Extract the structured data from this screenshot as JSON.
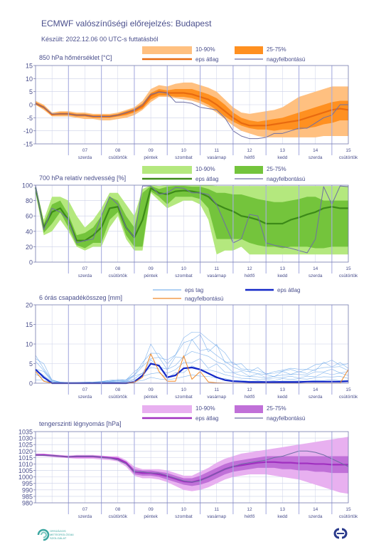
{
  "header": {
    "title": "ECMWF valószínűségi előrejelzés: Budapest",
    "subtitle": "Készült: 2022.12.06 00 UTC-s futtatásból"
  },
  "colors": {
    "axis": "#7a7fb0",
    "grid": "#ccd0e8",
    "day_line": "#a9aee0",
    "text": "#4a4f8c",
    "hires": "#6e6fa4"
  },
  "logos": {
    "omsz_text": [
      "ORSZÁGOS",
      "METEOROLÓGIAI",
      "SZOLGÁLAT"
    ],
    "omsz_color": "#3aa6a0",
    "ecmwf_color": "#2a3a8c"
  },
  "x_axis": {
    "days": [
      {
        "num": "07",
        "name": "szerda"
      },
      {
        "num": "08",
        "name": "csütörtök"
      },
      {
        "num": "09",
        "name": "péntek"
      },
      {
        "num": "10",
        "name": "szombat"
      },
      {
        "num": "11",
        "name": "vasárnap"
      },
      {
        "num": "12",
        "name": "hétfő"
      },
      {
        "num": "13",
        "name": "kedd"
      },
      {
        "num": "14",
        "name": "szerda"
      },
      {
        "num": "15",
        "name": "csütörtök"
      }
    ],
    "x_range_hours": [
      0,
      228
    ],
    "step_hours": 6
  },
  "chart_data": [
    {
      "type": "area",
      "id": "t850",
      "title": "850 hPa hőmérséklet [°C]",
      "ylim": [
        -15,
        15
      ],
      "yticks": [
        -15,
        -10,
        -5,
        0,
        5,
        10,
        15
      ],
      "colors": {
        "outer": "#ffc080",
        "inner": "#ff9020",
        "mean": "#e86a10"
      },
      "legend": {
        "band_outer": "10-90%",
        "band_inner": "25-75%",
        "mean": "eps átlag",
        "hires": "nagyfelbontású"
      },
      "x_hours": [
        0,
        6,
        12,
        18,
        24,
        30,
        36,
        42,
        48,
        54,
        60,
        66,
        72,
        78,
        84,
        90,
        96,
        102,
        108,
        114,
        120,
        126,
        132,
        138,
        144,
        150,
        156,
        162,
        168,
        174,
        180,
        186,
        192,
        198,
        204,
        210,
        216,
        222,
        228
      ],
      "p10": [
        0,
        -2,
        -4.5,
        -4.5,
        -4.5,
        -5,
        -5.5,
        -5.5,
        -6,
        -6,
        -5.5,
        -5,
        -4,
        -2,
        1,
        3,
        3,
        2.5,
        2,
        1.5,
        0.5,
        -1,
        -3,
        -5.5,
        -8,
        -10,
        -11,
        -12,
        -12.5,
        -12.5,
        -12.5,
        -12.5,
        -12.5,
        -12.5,
        -12.5,
        -12,
        -12,
        -12,
        -12
      ],
      "p25": [
        0,
        -1.5,
        -4,
        -4,
        -4,
        -4.5,
        -4.5,
        -5,
        -5,
        -5,
        -4.5,
        -4,
        -3,
        -1.5,
        2,
        3.5,
        3.5,
        3,
        3,
        2.5,
        1.5,
        0,
        -2,
        -4.5,
        -6.5,
        -8,
        -9,
        -9.5,
        -9.5,
        -10,
        -9.5,
        -9.5,
        -9.5,
        -9,
        -8.5,
        -7.5,
        -7,
        -6,
        -6
      ],
      "p75": [
        1,
        -0.5,
        -3.5,
        -3,
        -3,
        -3.5,
        -3.5,
        -4,
        -4,
        -4,
        -3.5,
        -2.5,
        -1.5,
        0.5,
        4.5,
        6,
        5.5,
        6,
        6,
        6,
        5,
        4,
        2.5,
        0,
        -3,
        -5,
        -6,
        -6.5,
        -6,
        -5.5,
        -5,
        -4,
        -3,
        -2,
        -1,
        0,
        1,
        1.5,
        1.5
      ],
      "p90": [
        1.5,
        0,
        -3,
        -2.5,
        -2.5,
        -3,
        -3,
        -3.5,
        -3.5,
        -3.5,
        -3,
        -2,
        -1,
        1.5,
        6,
        7.5,
        7,
        8,
        8.5,
        8.5,
        7.5,
        6.5,
        5,
        2,
        -1,
        -3,
        -3.5,
        -3,
        -2.5,
        -2,
        -1,
        1,
        3,
        4,
        5,
        6,
        7,
        7,
        7
      ],
      "mean": [
        0.5,
        -1,
        -3.8,
        -3.5,
        -3.5,
        -4,
        -4,
        -4.5,
        -4.5,
        -4.5,
        -4,
        -3.2,
        -2.2,
        -0.5,
        3.5,
        5,
        4.5,
        4.5,
        4.5,
        4,
        3,
        2,
        0,
        -2.5,
        -5,
        -7,
        -8,
        -8,
        -8,
        -7.5,
        -7,
        -6.5,
        -6,
        -5,
        -4,
        -3,
        -2,
        -1.5,
        -2
      ],
      "hires": [
        0.5,
        -1,
        -3.5,
        -3.5,
        -3.5,
        -4,
        -4,
        -4.5,
        -4.5,
        -4.5,
        -4,
        -3,
        -2,
        0,
        4,
        4.8,
        4.5,
        1,
        1,
        0.5,
        -1,
        -1.5,
        -2,
        -5,
        -10,
        -12,
        -13,
        -13,
        -12.5,
        -11,
        -11,
        -10,
        -9,
        -9,
        -7,
        -5,
        -4,
        0,
        0
      ]
    },
    {
      "type": "area",
      "id": "rh700",
      "title": "700 hPa relatív nedvesség [%]",
      "ylim": [
        0,
        100
      ],
      "yticks": [
        0,
        20,
        40,
        60,
        80,
        100
      ],
      "colors": {
        "outer": "#b4e87e",
        "inner": "#74c43c",
        "mean": "#3c8a18"
      },
      "legend": {
        "band_outer": "10-90%",
        "band_inner": "25-75%",
        "mean": "eps átlag",
        "hires": "nagyfelbontású"
      },
      "x_hours": [
        0,
        6,
        12,
        18,
        24,
        30,
        36,
        42,
        48,
        54,
        60,
        66,
        72,
        78,
        84,
        90,
        96,
        102,
        108,
        114,
        120,
        126,
        132,
        138,
        144,
        150,
        156,
        162,
        168,
        174,
        180,
        186,
        192,
        198,
        204,
        210,
        216,
        222,
        228
      ],
      "p10": [
        90,
        35,
        40,
        55,
        40,
        20,
        15,
        20,
        20,
        45,
        60,
        30,
        15,
        15,
        90,
        80,
        70,
        75,
        80,
        80,
        75,
        55,
        10,
        15,
        15,
        20,
        10,
        10,
        10,
        10,
        10,
        10,
        10,
        10,
        10,
        10,
        10,
        10,
        10
      ],
      "p25": [
        95,
        38,
        50,
        65,
        45,
        22,
        18,
        25,
        25,
        55,
        65,
        35,
        20,
        20,
        92,
        85,
        75,
        85,
        85,
        85,
        82,
        70,
        30,
        30,
        30,
        30,
        25,
        22,
        20,
        20,
        18,
        20,
        20,
        20,
        18,
        18,
        20,
        20,
        20
      ],
      "p75": [
        99,
        50,
        75,
        80,
        62,
        35,
        38,
        45,
        60,
        85,
        80,
        60,
        45,
        90,
        99,
        95,
        98,
        99,
        99,
        98,
        98,
        95,
        90,
        90,
        88,
        88,
        85,
        82,
        80,
        78,
        78,
        80,
        82,
        85,
        85,
        80,
        80,
        80,
        80
      ],
      "p90": [
        100,
        55,
        85,
        85,
        80,
        60,
        45,
        55,
        70,
        90,
        90,
        75,
        60,
        95,
        100,
        99,
        100,
        100,
        100,
        100,
        100,
        100,
        99,
        99,
        99,
        99,
        99,
        99,
        99,
        99,
        99,
        99,
        99,
        99,
        99,
        99,
        99,
        99,
        99
      ],
      "mean": [
        97,
        45,
        65,
        70,
        55,
        28,
        28,
        35,
        45,
        70,
        72,
        45,
        32,
        55,
        96,
        90,
        88,
        92,
        93,
        92,
        90,
        85,
        75,
        70,
        66,
        60,
        58,
        55,
        50,
        50,
        50,
        55,
        58,
        62,
        65,
        70,
        72,
        70,
        70
      ],
      "hires": [
        100,
        42,
        70,
        65,
        55,
        25,
        28,
        30,
        60,
        85,
        75,
        45,
        32,
        99,
        99,
        88,
        90,
        97,
        96,
        90,
        90,
        88,
        75,
        50,
        25,
        30,
        62,
        60,
        25,
        22,
        20,
        18,
        15,
        12,
        30,
        98,
        75,
        99,
        98
      ]
    },
    {
      "type": "line",
      "id": "precip",
      "title": "6 órás csapadékösszeg [mm]",
      "ylim": [
        0,
        20
      ],
      "yticks": [
        0,
        5,
        10,
        15,
        20
      ],
      "colors": {
        "members": "#5fa0e8",
        "mean": "#1428c8",
        "hires": "#f08a2a"
      },
      "legend": {
        "members": "eps tag",
        "mean": "eps átlag",
        "hires": "nagyfelbontású"
      },
      "x_hours": [
        0,
        6,
        12,
        18,
        24,
        30,
        36,
        42,
        48,
        54,
        60,
        66,
        72,
        78,
        84,
        90,
        96,
        102,
        108,
        114,
        120,
        126,
        132,
        138,
        144,
        150,
        156,
        162,
        168,
        174,
        180,
        186,
        192,
        198,
        204,
        210,
        216,
        222,
        228
      ],
      "members_envelope_max": [
        8,
        5,
        1,
        0.3,
        0.2,
        0.2,
        0.3,
        0.3,
        0.5,
        0.8,
        1,
        1,
        3,
        6,
        10,
        9,
        6,
        9,
        12,
        15,
        14,
        12,
        11,
        8,
        6,
        5,
        4,
        4,
        3,
        3,
        4,
        4,
        4,
        4,
        5,
        6,
        6,
        6,
        5
      ],
      "mean": [
        3.5,
        1.5,
        0,
        0,
        0,
        0,
        0,
        0,
        0,
        0,
        0,
        0,
        0.3,
        2,
        5,
        4.5,
        1.5,
        2,
        3.8,
        4,
        3.5,
        2.5,
        1.5,
        0.8,
        0.5,
        0.4,
        0.3,
        0.3,
        0.3,
        0.3,
        0.3,
        0.3,
        0.3,
        0.4,
        0.4,
        0.4,
        0.4,
        0.4,
        0.5
      ],
      "hires": [
        3,
        0.5,
        0,
        0,
        0,
        0,
        0,
        0,
        0,
        0,
        0,
        0,
        0.2,
        1.5,
        7.5,
        3,
        0.5,
        0.5,
        7,
        1,
        3,
        0.3,
        0.1,
        0,
        0,
        0,
        0,
        0,
        0,
        0,
        0,
        0,
        0,
        0,
        0,
        0,
        0,
        0,
        3.5
      ]
    },
    {
      "type": "area",
      "id": "mslp",
      "title": "tengerszinti légnyomás [hPa]",
      "ylim": [
        980,
        1035
      ],
      "yticks": [
        980,
        985,
        990,
        995,
        1000,
        1005,
        1010,
        1015,
        1020,
        1025,
        1030,
        1035
      ],
      "colors": {
        "outer": "#e8b0f0",
        "inner": "#c070d8",
        "mean": "#a030c0"
      },
      "legend": {
        "band_outer": "10-90%",
        "band_inner": "25-75%",
        "mean": "eps átlag",
        "hires": "nagyfelbontású"
      },
      "x_hours": [
        0,
        6,
        12,
        18,
        24,
        30,
        36,
        42,
        48,
        54,
        60,
        66,
        72,
        78,
        84,
        90,
        96,
        102,
        108,
        114,
        120,
        126,
        132,
        138,
        144,
        150,
        156,
        162,
        168,
        174,
        180,
        186,
        192,
        198,
        204,
        210,
        216,
        222,
        228
      ],
      "p10": [
        1016,
        1016,
        1015.5,
        1015,
        1014.5,
        1014,
        1014,
        1014,
        1013.5,
        1013,
        1012,
        1008,
        1001,
        999,
        999,
        998,
        996,
        993,
        990,
        989,
        990,
        992,
        995,
        998,
        1000,
        1001,
        1002,
        1002,
        1002,
        1001,
        1000,
        999,
        998,
        996,
        994,
        992,
        990,
        988,
        987
      ],
      "p25": [
        1016.5,
        1016.5,
        1016,
        1015.5,
        1015,
        1015,
        1015,
        1015,
        1014.5,
        1014,
        1013,
        1010,
        1002,
        1001,
        1001,
        1000,
        998,
        996,
        994,
        993,
        994,
        996,
        999,
        1002,
        1004,
        1005,
        1006,
        1007,
        1007,
        1007,
        1006,
        1006,
        1005,
        1005,
        1004,
        1004,
        1003,
        1003,
        1003
      ],
      "p75": [
        1017.5,
        1017.5,
        1017,
        1016.5,
        1016,
        1016.5,
        1016.5,
        1016.5,
        1016,
        1015.5,
        1015,
        1012,
        1006,
        1005,
        1005,
        1004,
        1003,
        1001,
        999,
        999,
        1001,
        1004,
        1007,
        1010,
        1012,
        1013,
        1014,
        1015,
        1016,
        1016,
        1016,
        1016,
        1016,
        1016,
        1016,
        1016,
        1016,
        1016,
        1016
      ],
      "p90": [
        1018,
        1018,
        1017.5,
        1017,
        1016.5,
        1017,
        1017,
        1017,
        1016.5,
        1016,
        1016,
        1013,
        1008,
        1006,
        1006,
        1006,
        1005,
        1003,
        1001,
        1001,
        1004,
        1007,
        1011,
        1014,
        1016,
        1018,
        1019,
        1020,
        1021,
        1022,
        1023,
        1024,
        1025,
        1026,
        1027,
        1028,
        1029,
        1030,
        1031
      ],
      "mean": [
        1017,
        1017,
        1016.5,
        1016,
        1015.5,
        1015.8,
        1015.8,
        1015.8,
        1015.3,
        1014.8,
        1014,
        1011,
        1004,
        1003,
        1003,
        1002,
        1000.5,
        998.5,
        996.5,
        996,
        997.5,
        1000,
        1003,
        1006,
        1008,
        1009,
        1010,
        1011,
        1011.5,
        1011.5,
        1011,
        1011,
        1010.5,
        1010.5,
        1010,
        1010,
        1009.5,
        1009.5,
        1009.5
      ],
      "hires": [
        1017,
        1016.5,
        1016.5,
        1016,
        1015.5,
        1016,
        1016,
        1016,
        1015,
        1014.5,
        1013,
        1010,
        1004,
        1004,
        1003,
        1003,
        1001,
        999,
        997,
        996,
        997,
        1000,
        1003,
        1006,
        1008,
        1010,
        1011,
        1012,
        1013,
        1015,
        1016,
        1018,
        1020,
        1020,
        1019,
        1017,
        1014,
        1011,
        1008
      ]
    }
  ]
}
